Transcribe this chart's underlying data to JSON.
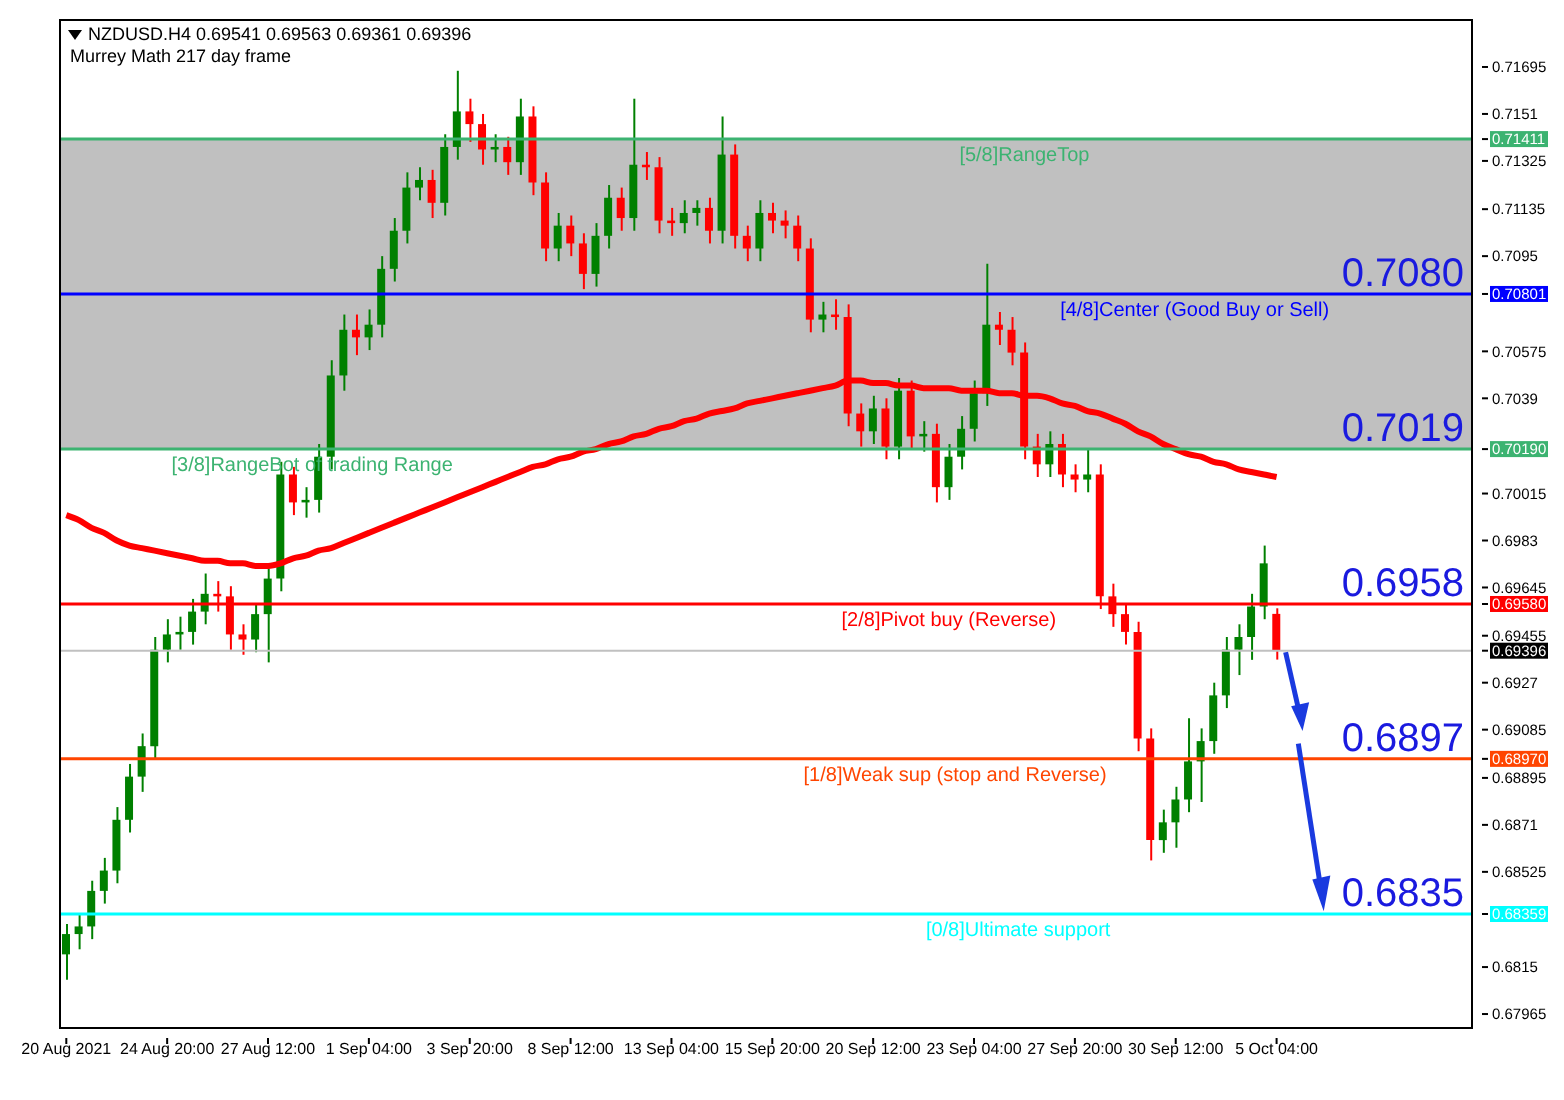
{
  "chart_data": {
    "type": "candlestick",
    "title": "NZDUSD.H4  0.69541 0.69563 0.69361 0.69396",
    "subtitle": "Murrey Math 217 day frame",
    "categories": [
      "20 Aug 2021",
      null,
      null,
      null,
      null,
      null,
      null,
      null,
      "24 Aug 20:00",
      null,
      null,
      null,
      null,
      null,
      null,
      null,
      "27 Aug 12:00",
      null,
      null,
      null,
      null,
      null,
      null,
      null,
      "1 Sep 04:00",
      null,
      null,
      null,
      null,
      null,
      null,
      null,
      "3 Sep 20:00",
      null,
      null,
      null,
      null,
      null,
      null,
      null,
      "8 Sep 12:00",
      null,
      null,
      null,
      null,
      null,
      null,
      null,
      "13 Sep 04:00",
      null,
      null,
      null,
      null,
      null,
      null,
      null,
      "15 Sep 20:00",
      null,
      null,
      null,
      null,
      null,
      null,
      null,
      "20 Sep 12:00",
      null,
      null,
      null,
      null,
      null,
      null,
      null,
      "23 Sep 04:00",
      null,
      null,
      null,
      null,
      null,
      null,
      null,
      "27 Sep 20:00",
      null,
      null,
      null,
      null,
      null,
      null,
      null,
      "30 Sep 12:00",
      null,
      null,
      null,
      null,
      null,
      null,
      null,
      "5 Oct 04:00",
      null,
      null,
      null,
      null,
      null,
      null,
      null,
      null,
      null,
      null,
      null,
      null,
      null,
      null,
      null
    ],
    "ohlc": [
      [
        0.682,
        0.6832,
        0.681,
        0.6828
      ],
      [
        0.6828,
        0.6836,
        0.6822,
        0.6831
      ],
      [
        0.6831,
        0.6849,
        0.6826,
        0.6845
      ],
      [
        0.6845,
        0.6858,
        0.684,
        0.6853
      ],
      [
        0.6853,
        0.6878,
        0.6848,
        0.6873
      ],
      [
        0.6873,
        0.6895,
        0.6868,
        0.689
      ],
      [
        0.689,
        0.6907,
        0.6884,
        0.6902
      ],
      [
        0.6902,
        0.6945,
        0.6897,
        0.694
      ],
      [
        0.694,
        0.6952,
        0.6935,
        0.6946
      ],
      [
        0.6946,
        0.6953,
        0.694,
        0.6947
      ],
      [
        0.6947,
        0.696,
        0.6942,
        0.6955
      ],
      [
        0.6955,
        0.697,
        0.695,
        0.6962
      ],
      [
        0.6962,
        0.6967,
        0.6955,
        0.6961
      ],
      [
        0.6961,
        0.6965,
        0.694,
        0.6946
      ],
      [
        0.6946,
        0.695,
        0.6938,
        0.6944
      ],
      [
        0.6944,
        0.6958,
        0.6939,
        0.6954
      ],
      [
        0.6954,
        0.6972,
        0.6935,
        0.6968
      ],
      [
        0.6968,
        0.7014,
        0.6963,
        0.7009
      ],
      [
        0.7009,
        0.7012,
        0.6993,
        0.6998
      ],
      [
        0.6998,
        0.7004,
        0.6992,
        0.6999
      ],
      [
        0.6999,
        0.7021,
        0.6994,
        0.7016
      ],
      [
        0.7016,
        0.7054,
        0.7011,
        0.7048
      ],
      [
        0.7048,
        0.7072,
        0.7042,
        0.7066
      ],
      [
        0.7066,
        0.7072,
        0.7056,
        0.7063
      ],
      [
        0.7063,
        0.7074,
        0.7058,
        0.7068
      ],
      [
        0.7068,
        0.7095,
        0.7063,
        0.709
      ],
      [
        0.709,
        0.711,
        0.7085,
        0.7105
      ],
      [
        0.7105,
        0.7128,
        0.71,
        0.7122
      ],
      [
        0.7122,
        0.713,
        0.7117,
        0.7125
      ],
      [
        0.7125,
        0.7129,
        0.711,
        0.7116
      ],
      [
        0.7116,
        0.7143,
        0.7111,
        0.7138
      ],
      [
        0.7138,
        0.7168,
        0.7133,
        0.7152
      ],
      [
        0.7152,
        0.7157,
        0.714,
        0.7147
      ],
      [
        0.7147,
        0.7151,
        0.7131,
        0.7137
      ],
      [
        0.7137,
        0.7143,
        0.7132,
        0.7138
      ],
      [
        0.7138,
        0.7142,
        0.7127,
        0.7132
      ],
      [
        0.7132,
        0.7157,
        0.7127,
        0.715
      ],
      [
        0.715,
        0.7154,
        0.7119,
        0.7124
      ],
      [
        0.7124,
        0.7128,
        0.7093,
        0.7098
      ],
      [
        0.7098,
        0.7112,
        0.7093,
        0.7107
      ],
      [
        0.7107,
        0.7111,
        0.7095,
        0.71
      ],
      [
        0.71,
        0.7104,
        0.7082,
        0.7088
      ],
      [
        0.7088,
        0.7108,
        0.7083,
        0.7103
      ],
      [
        0.7103,
        0.7123,
        0.7098,
        0.7118
      ],
      [
        0.7118,
        0.7122,
        0.7105,
        0.711
      ],
      [
        0.711,
        0.7157,
        0.7105,
        0.7131
      ],
      [
        0.7131,
        0.7136,
        0.7125,
        0.713
      ],
      [
        0.713,
        0.7134,
        0.7104,
        0.7109
      ],
      [
        0.7109,
        0.7114,
        0.7103,
        0.7108
      ],
      [
        0.7108,
        0.7117,
        0.7104,
        0.7112
      ],
      [
        0.7112,
        0.7117,
        0.7107,
        0.7114
      ],
      [
        0.7114,
        0.7118,
        0.71,
        0.7105
      ],
      [
        0.7105,
        0.715,
        0.71,
        0.7135
      ],
      [
        0.7135,
        0.7139,
        0.7098,
        0.7103
      ],
      [
        0.7103,
        0.7107,
        0.7093,
        0.7098
      ],
      [
        0.7098,
        0.7117,
        0.7093,
        0.7112
      ],
      [
        0.7112,
        0.7116,
        0.7104,
        0.7109
      ],
      [
        0.7109,
        0.7113,
        0.7102,
        0.7107
      ],
      [
        0.7107,
        0.7111,
        0.7093,
        0.7098
      ],
      [
        0.7098,
        0.7102,
        0.7065,
        0.707
      ],
      [
        0.707,
        0.7077,
        0.7065,
        0.7072
      ],
      [
        0.7072,
        0.7078,
        0.7066,
        0.7071
      ],
      [
        0.7071,
        0.7076,
        0.7028,
        0.7033
      ],
      [
        0.7033,
        0.7037,
        0.702,
        0.7026
      ],
      [
        0.7026,
        0.704,
        0.7021,
        0.7035
      ],
      [
        0.7035,
        0.7039,
        0.7015,
        0.702
      ],
      [
        0.702,
        0.7047,
        0.7015,
        0.7042
      ],
      [
        0.7042,
        0.7046,
        0.7019,
        0.7024
      ],
      [
        0.7024,
        0.703,
        0.7018,
        0.7025
      ],
      [
        0.7025,
        0.7029,
        0.6998,
        0.7004
      ],
      [
        0.7004,
        0.7021,
        0.6999,
        0.7016
      ],
      [
        0.7016,
        0.7032,
        0.7011,
        0.7027
      ],
      [
        0.7027,
        0.7046,
        0.7022,
        0.7041
      ],
      [
        0.7041,
        0.7092,
        0.7036,
        0.7068
      ],
      [
        0.7068,
        0.7073,
        0.706,
        0.7066
      ],
      [
        0.7066,
        0.7071,
        0.7052,
        0.7057
      ],
      [
        0.7057,
        0.7061,
        0.7015,
        0.702
      ],
      [
        0.702,
        0.7025,
        0.7008,
        0.7013
      ],
      [
        0.7013,
        0.7026,
        0.7008,
        0.7021
      ],
      [
        0.7021,
        0.7025,
        0.7004,
        0.7009
      ],
      [
        0.7009,
        0.7013,
        0.7002,
        0.7007
      ],
      [
        0.7007,
        0.7019,
        0.7002,
        0.7009
      ],
      [
        0.7009,
        0.7013,
        0.6956,
        0.6961
      ],
      [
        0.6961,
        0.6966,
        0.6949,
        0.6954
      ],
      [
        0.6954,
        0.6958,
        0.6942,
        0.6947
      ],
      [
        0.6947,
        0.6951,
        0.69,
        0.6905
      ],
      [
        0.6905,
        0.6909,
        0.6857,
        0.6865
      ],
      [
        0.6865,
        0.6877,
        0.686,
        0.6872
      ],
      [
        0.6872,
        0.6886,
        0.6862,
        0.6881
      ],
      [
        0.6881,
        0.6913,
        0.6876,
        0.6896
      ],
      [
        0.6896,
        0.6909,
        0.688,
        0.6904
      ],
      [
        0.6904,
        0.6927,
        0.6899,
        0.6922
      ],
      [
        0.6922,
        0.6945,
        0.6917,
        0.694
      ],
      [
        0.694,
        0.695,
        0.693,
        0.6945
      ],
      [
        0.6945,
        0.6962,
        0.6936,
        0.6957
      ],
      [
        0.6957,
        0.6981,
        0.6952,
        0.6974
      ],
      [
        0.69541,
        0.69563,
        0.69361,
        0.69396
      ],
      null,
      null,
      null,
      null,
      null,
      null,
      null,
      null,
      null,
      null,
      null,
      null,
      null,
      null,
      null
    ],
    "colors": [
      "#008000",
      "#008000",
      "#008000",
      "#008000",
      "#008000",
      "#008000",
      "#008000",
      "#008000",
      "#008000",
      "#008000",
      "#008000",
      "#008000",
      "#ff0000",
      "#ff0000",
      "#ff0000",
      "#008000",
      "#008000",
      "#008000",
      "#ff0000",
      "#008000",
      "#008000",
      "#008000",
      "#008000",
      "#ff0000",
      "#008000",
      "#008000",
      "#008000",
      "#008000",
      "#008000",
      "#ff0000",
      "#008000",
      "#008000",
      "#ff0000",
      "#ff0000",
      "#008000",
      "#ff0000",
      "#008000",
      "#ff0000",
      "#ff0000",
      "#008000",
      "#ff0000",
      "#ff0000",
      "#008000",
      "#008000",
      "#ff0000",
      "#008000",
      "#ff0000",
      "#ff0000",
      "#ff0000",
      "#008000",
      "#008000",
      "#ff0000",
      "#008000",
      "#ff0000",
      "#ff0000",
      "#008000",
      "#ff0000",
      "#ff0000",
      "#ff0000",
      "#ff0000",
      "#008000",
      "#ff0000",
      "#ff0000",
      "#ff0000",
      "#008000",
      "#ff0000",
      "#008000",
      "#ff0000",
      "#008000",
      "#ff0000",
      "#008000",
      "#008000",
      "#008000",
      "#008000",
      "#ff0000",
      "#ff0000",
      "#ff0000",
      "#ff0000",
      "#008000",
      "#ff0000",
      "#ff0000",
      "#008000",
      "#ff0000",
      "#ff0000",
      "#ff0000",
      "#ff0000",
      "#ff0000",
      "#008000",
      "#008000",
      "#008000",
      "#008000",
      "#008000",
      "#008000",
      "#008000",
      "#008000",
      "#008000",
      "#ff0000",
      null,
      null,
      null,
      null,
      null,
      null,
      null,
      null,
      null,
      null,
      null,
      null,
      null,
      null,
      null
    ],
    "series": [
      {
        "type": "line",
        "color": "#ff0000",
        "values": [
          0.6993,
          0.6991,
          0.6988,
          0.6986,
          0.6983,
          0.6981,
          0.698,
          0.6979,
          0.6978,
          0.6977,
          0.6976,
          0.6975,
          0.6975,
          0.6974,
          0.6974,
          0.6973,
          0.6973,
          0.6974,
          0.6976,
          0.6977,
          0.6979,
          0.698,
          0.6982,
          0.6984,
          0.6986,
          0.6988,
          0.699,
          0.6992,
          0.6994,
          0.6996,
          0.6998,
          0.7,
          0.7002,
          0.7004,
          0.7006,
          0.7008,
          0.701,
          0.7012,
          0.7013,
          0.7015,
          0.7016,
          0.7018,
          0.7019,
          0.7021,
          0.7022,
          0.7024,
          0.7025,
          0.7027,
          0.7028,
          0.703,
          0.7031,
          0.7033,
          0.7034,
          0.7035,
          0.7037,
          0.7038,
          0.7039,
          0.704,
          0.7041,
          0.7042,
          0.7043,
          0.7044,
          0.7046,
          0.7046,
          0.7045,
          0.7045,
          0.7044,
          0.7044,
          0.7043,
          0.7043,
          0.7043,
          0.7042,
          0.7042,
          0.7042,
          0.7041,
          0.7041,
          0.704,
          0.704,
          0.7039,
          0.7037,
          0.7036,
          0.7034,
          0.7033,
          0.7031,
          0.7029,
          0.7026,
          0.7024,
          0.7021,
          0.7019,
          0.7017,
          0.7016,
          0.7014,
          0.7013,
          0.7011,
          0.701,
          0.7009,
          0.7008,
          null,
          null,
          null,
          null,
          null,
          null,
          null,
          null,
          null,
          null,
          null,
          null,
          null,
          null,
          null
        ]
      }
    ],
    "ylim": [
      0.6791,
      0.7188
    ],
    "yticks": [
      0.71695,
      0.7151,
      0.71411,
      0.71325,
      0.71135,
      0.7095,
      {
        "value": 0.70801,
        "label": "0.70801"
      },
      0.70575,
      0.7039,
      {
        "value": 0.7019,
        "label": "0.70190"
      },
      0.70015,
      0.6983,
      0.69645,
      {
        "value": 0.6958,
        "label": "0.69580"
      },
      0.69455,
      0.69396,
      0.6927,
      0.69085,
      {
        "value": 0.6897,
        "label": "0.68970"
      },
      0.68895,
      0.6871,
      0.68525,
      0.68359,
      0.6815,
      0.67965
    ],
    "bands": [
      {
        "axis": "y",
        "from": 0.7019,
        "to": 0.71411,
        "label": null,
        "color": "#c0c0c0"
      }
    ],
    "ref_lines": [
      {
        "axis": "y",
        "value": 0.71411,
        "label": "[5/8]RangeTop",
        "color": "#3cb371"
      },
      {
        "axis": "y",
        "value": 0.70801,
        "label": "[4/8]Center (Good Buy or Sell)",
        "color": "#0000ff"
      },
      {
        "axis": "y",
        "value": 0.7019,
        "label": "[3/8]RangeBot of trading Range",
        "color": "#3cb371"
      },
      {
        "axis": "y",
        "value": 0.6958,
        "label": "[2/8]Pivot buy (Reverse)",
        "color": "#ff0000"
      },
      {
        "axis": "y",
        "value": 0.69396,
        "label": null,
        "color": "#c0c0c0"
      },
      {
        "axis": "y",
        "value": 0.6897,
        "label": "[1/8]Weak sup (stop and Reverse)",
        "color": "#ff4500"
      },
      {
        "axis": "y",
        "value": 0.68359,
        "label": "[0/8]Ultimate support",
        "color": "#00ffff"
      }
    ],
    "annotations": [
      {
        "text": "0.7080",
        "y": 0.70801
      },
      {
        "text": "0.7019",
        "y": 0.7019
      },
      {
        "text": "0.6958",
        "y": 0.6958
      },
      {
        "text": "0.6897",
        "y": 0.6897
      },
      {
        "text": "0.6835",
        "y": 0.68359
      }
    ]
  }
}
